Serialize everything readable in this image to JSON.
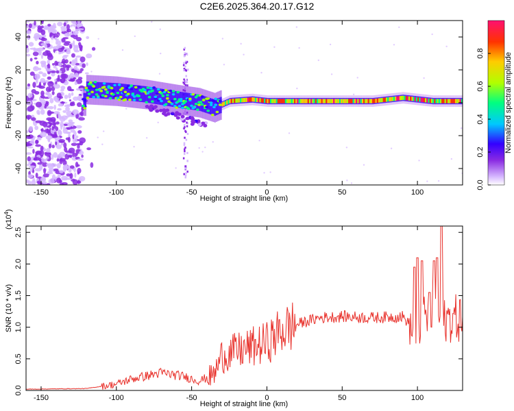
{
  "title": "C2E6.2025.364.20.17.G12",
  "chart_data": [
    {
      "id": "spectrogram",
      "type": "heatmap",
      "xlabel": "Height of straight line (km)",
      "ylabel": "Frequency (Hz)",
      "xlim": [
        -160,
        130
      ],
      "ylim": [
        -50,
        50
      ],
      "xticks": [
        -150,
        -100,
        -50,
        0,
        50,
        100
      ],
      "yticks": [
        -40,
        -20,
        0,
        20,
        40
      ],
      "colorbar": {
        "label": "Normalized spectral amplitude",
        "range": [
          0,
          1
        ],
        "ticks": [
          "0.0",
          "0.2",
          "0.4",
          "0.6",
          "0.8"
        ],
        "colors": [
          "#ffffff",
          "#d6b8ff",
          "#8a2be2",
          "#3300ff",
          "#00c8ff",
          "#00ff80",
          "#b0ff00",
          "#ffcc00",
          "#ff3300",
          "#ff1070"
        ]
      },
      "ridge": [
        {
          "x": -120,
          "y": 8
        },
        {
          "x": -100,
          "y": 7
        },
        {
          "x": -80,
          "y": 5
        },
        {
          "x": -60,
          "y": 2
        },
        {
          "x": -45,
          "y": 0
        },
        {
          "x": -35,
          "y": -3
        },
        {
          "x": -25,
          "y": 1
        },
        {
          "x": -10,
          "y": 2
        },
        {
          "x": 0,
          "y": 1
        },
        {
          "x": 20,
          "y": 1
        },
        {
          "x": 50,
          "y": 1
        },
        {
          "x": 70,
          "y": 1
        },
        {
          "x": 90,
          "y": 3
        },
        {
          "x": 100,
          "y": 2
        },
        {
          "x": 110,
          "y": 1
        },
        {
          "x": 130,
          "y": 1
        }
      ]
    },
    {
      "id": "snr",
      "type": "line",
      "xlabel": "Height of straight line (km)",
      "ylabel": "SNR (10 * v/v)",
      "multiplier": "(x10",
      "multiplier_exp": "4",
      "multiplier_close": ")",
      "xlim": [
        -160,
        130
      ],
      "ylim": [
        0,
        2.6
      ],
      "xticks": [
        -150,
        -100,
        -50,
        0,
        50,
        100
      ],
      "yticks": [
        "0.0",
        "0.5",
        "1.0",
        "1.5",
        "2.0",
        "2.5"
      ],
      "color": "#e8302a",
      "envelope": [
        {
          "x": -160,
          "y": 0.02
        },
        {
          "x": -120,
          "y": 0.03
        },
        {
          "x": -100,
          "y": 0.1
        },
        {
          "x": -90,
          "y": 0.18
        },
        {
          "x": -70,
          "y": 0.28
        },
        {
          "x": -55,
          "y": 0.22
        },
        {
          "x": -45,
          "y": 0.15
        },
        {
          "x": -35,
          "y": 0.25
        },
        {
          "x": -30,
          "y": 0.55
        },
        {
          "x": -15,
          "y": 0.65
        },
        {
          "x": 0,
          "y": 0.75
        },
        {
          "x": 10,
          "y": 0.95
        },
        {
          "x": 20,
          "y": 1.05
        },
        {
          "x": 35,
          "y": 1.15
        },
        {
          "x": 50,
          "y": 1.17
        },
        {
          "x": 70,
          "y": 1.15
        },
        {
          "x": 90,
          "y": 1.17
        },
        {
          "x": 95,
          "y": 1.05
        },
        {
          "x": 100,
          "y": 0.7
        },
        {
          "x": 103,
          "y": 1.1
        },
        {
          "x": 108,
          "y": 1.15
        },
        {
          "x": 115,
          "y": 1.1
        },
        {
          "x": 120,
          "y": 1.13
        },
        {
          "x": 130,
          "y": 1.15
        }
      ],
      "spikes": [
        {
          "x": 98,
          "y": 1.95
        },
        {
          "x": 100,
          "y": 2.1
        },
        {
          "x": 103,
          "y": 2.05
        },
        {
          "x": 108,
          "y": 1.55
        },
        {
          "x": 111,
          "y": 2.05
        },
        {
          "x": 113,
          "y": 2.1
        },
        {
          "x": 116,
          "y": 2.6
        }
      ]
    }
  ]
}
